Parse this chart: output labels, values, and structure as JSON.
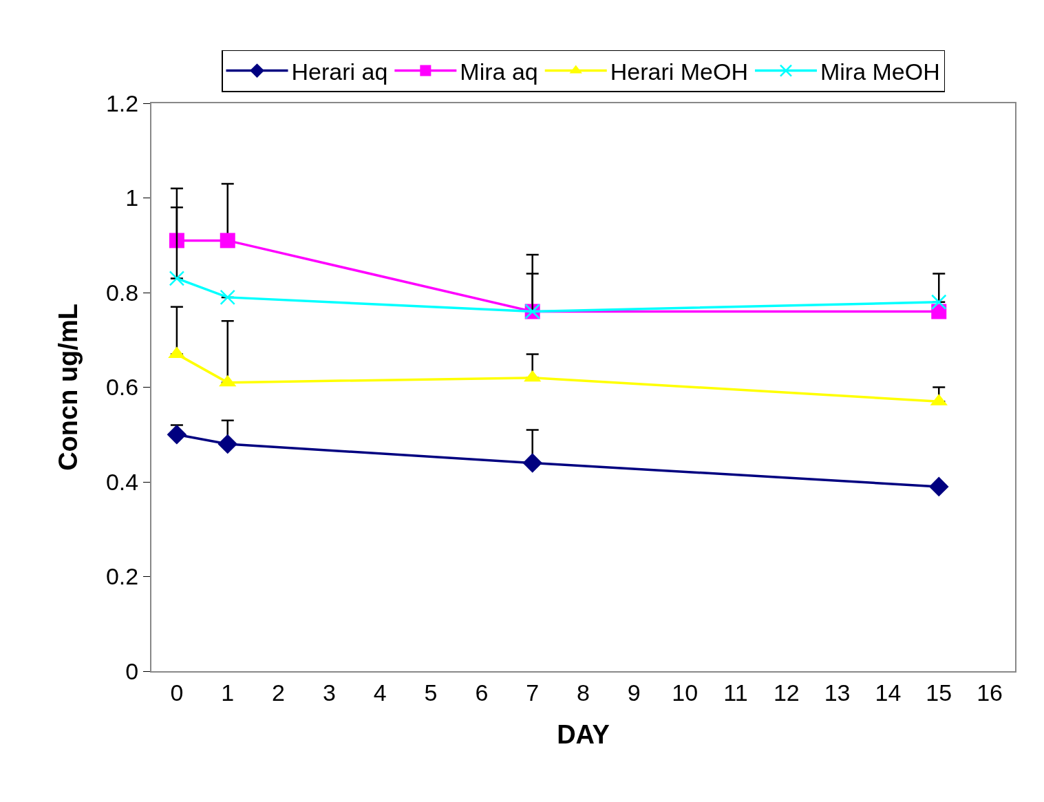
{
  "chart_data": {
    "type": "line",
    "xlabel": "DAY",
    "ylabel": "Concn ug/mL",
    "x": [
      0,
      1,
      7,
      15
    ],
    "xlim": [
      -0.5,
      16.5
    ],
    "xticks": [
      0,
      1,
      2,
      3,
      4,
      5,
      6,
      7,
      8,
      9,
      10,
      11,
      12,
      13,
      14,
      15,
      16
    ],
    "ylim": [
      0,
      1.2
    ],
    "yticks": [
      0,
      0.2,
      0.4,
      0.6,
      0.8,
      1,
      1.2
    ],
    "grid": false,
    "legend": "top",
    "series": [
      {
        "name": "Herari aq",
        "color": "#000080",
        "marker": "diamond",
        "values": [
          0.5,
          0.48,
          0.44,
          0.39
        ],
        "errors": [
          [
            0.5,
            0.52
          ],
          [
            0.48,
            0.53
          ],
          [
            0.44,
            0.51
          ],
          null
        ]
      },
      {
        "name": "Mira aq",
        "color": "#ff00ff",
        "marker": "square",
        "values": [
          0.91,
          0.91,
          0.76,
          0.76
        ],
        "errors": [
          [
            0.91,
            1.02
          ],
          [
            0.91,
            1.03
          ],
          [
            0.76,
            0.88
          ],
          null
        ]
      },
      {
        "name": "Herari MeOH",
        "color": "#ffff00",
        "marker": "triangle",
        "values": [
          0.67,
          0.61,
          0.62,
          0.57
        ],
        "errors": [
          [
            0.67,
            0.77
          ],
          [
            0.61,
            0.74
          ],
          [
            0.62,
            0.67
          ],
          [
            0.57,
            0.6
          ]
        ]
      },
      {
        "name": "Mira MeOH",
        "color": "#00ffff",
        "marker": "cross",
        "values": [
          0.83,
          0.79,
          0.76,
          0.78
        ],
        "errors": [
          [
            0.83,
            0.98
          ],
          null,
          [
            0.76,
            0.84
          ],
          [
            0.78,
            0.84
          ]
        ]
      }
    ]
  }
}
